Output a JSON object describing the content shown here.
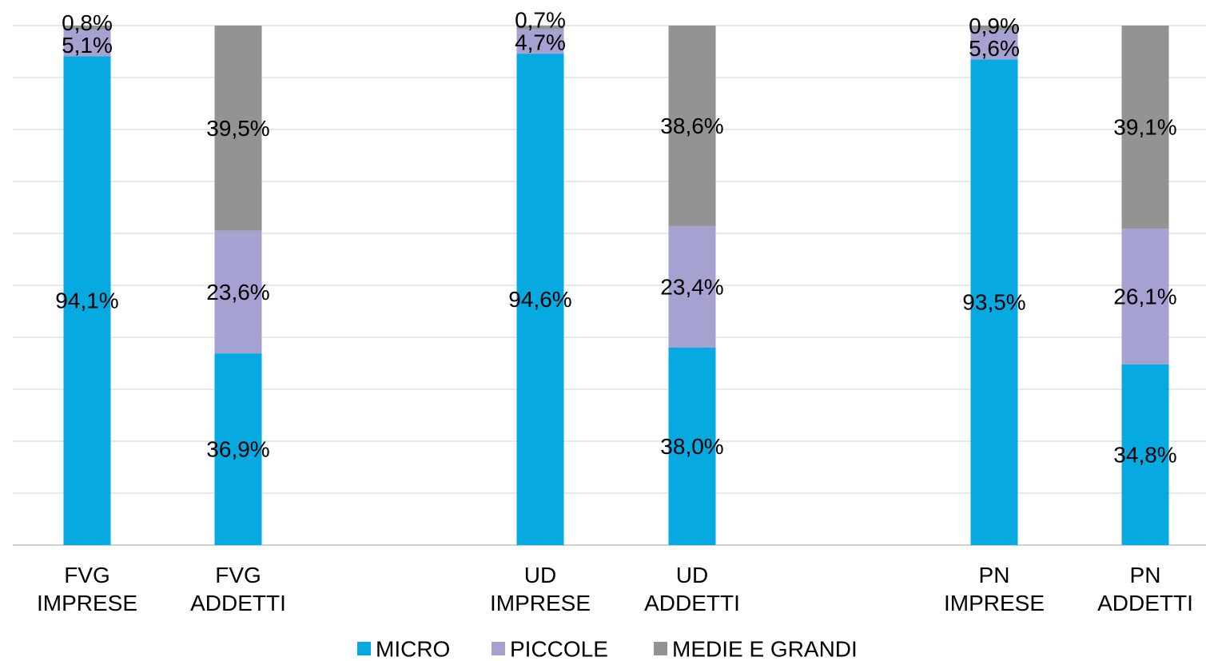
{
  "chart_data": {
    "type": "bar",
    "stacked": true,
    "percent": true,
    "grid": true,
    "legend_position": "bottom",
    "ylim": [
      0,
      100
    ],
    "categories": [
      [
        "FVG",
        "IMPRESE"
      ],
      [
        "FVG",
        "ADDETTI"
      ],
      [
        "UD",
        "IMPRESE"
      ],
      [
        "UD",
        "ADDETTI"
      ],
      [
        "PN",
        "IMPRESE"
      ],
      [
        "PN",
        "ADDETTI"
      ]
    ],
    "series": [
      {
        "name": "MICRO",
        "color": "#06A9E0",
        "values": [
          94.1,
          36.9,
          94.6,
          38.0,
          93.5,
          34.8
        ],
        "labels": [
          "94,1%",
          "36,9%",
          "94,6%",
          "38,0%",
          "93,5%",
          "34,8%"
        ]
      },
      {
        "name": "PICCOLE",
        "color": "#A5A2D2",
        "values": [
          5.1,
          23.6,
          4.7,
          23.4,
          5.6,
          26.1
        ],
        "labels": [
          "5,1%",
          "23,6%",
          "4,7%",
          "23,4%",
          "5,6%",
          "26,1%"
        ]
      },
      {
        "name": "MEDIE E GRANDI",
        "color": "#939393",
        "values": [
          0.8,
          39.5,
          0.7,
          38.6,
          0.9,
          39.1
        ],
        "labels": [
          "0,8%",
          "39,5%",
          "0,7%",
          "38,6%",
          "0,9%",
          "39,1%"
        ]
      }
    ]
  }
}
